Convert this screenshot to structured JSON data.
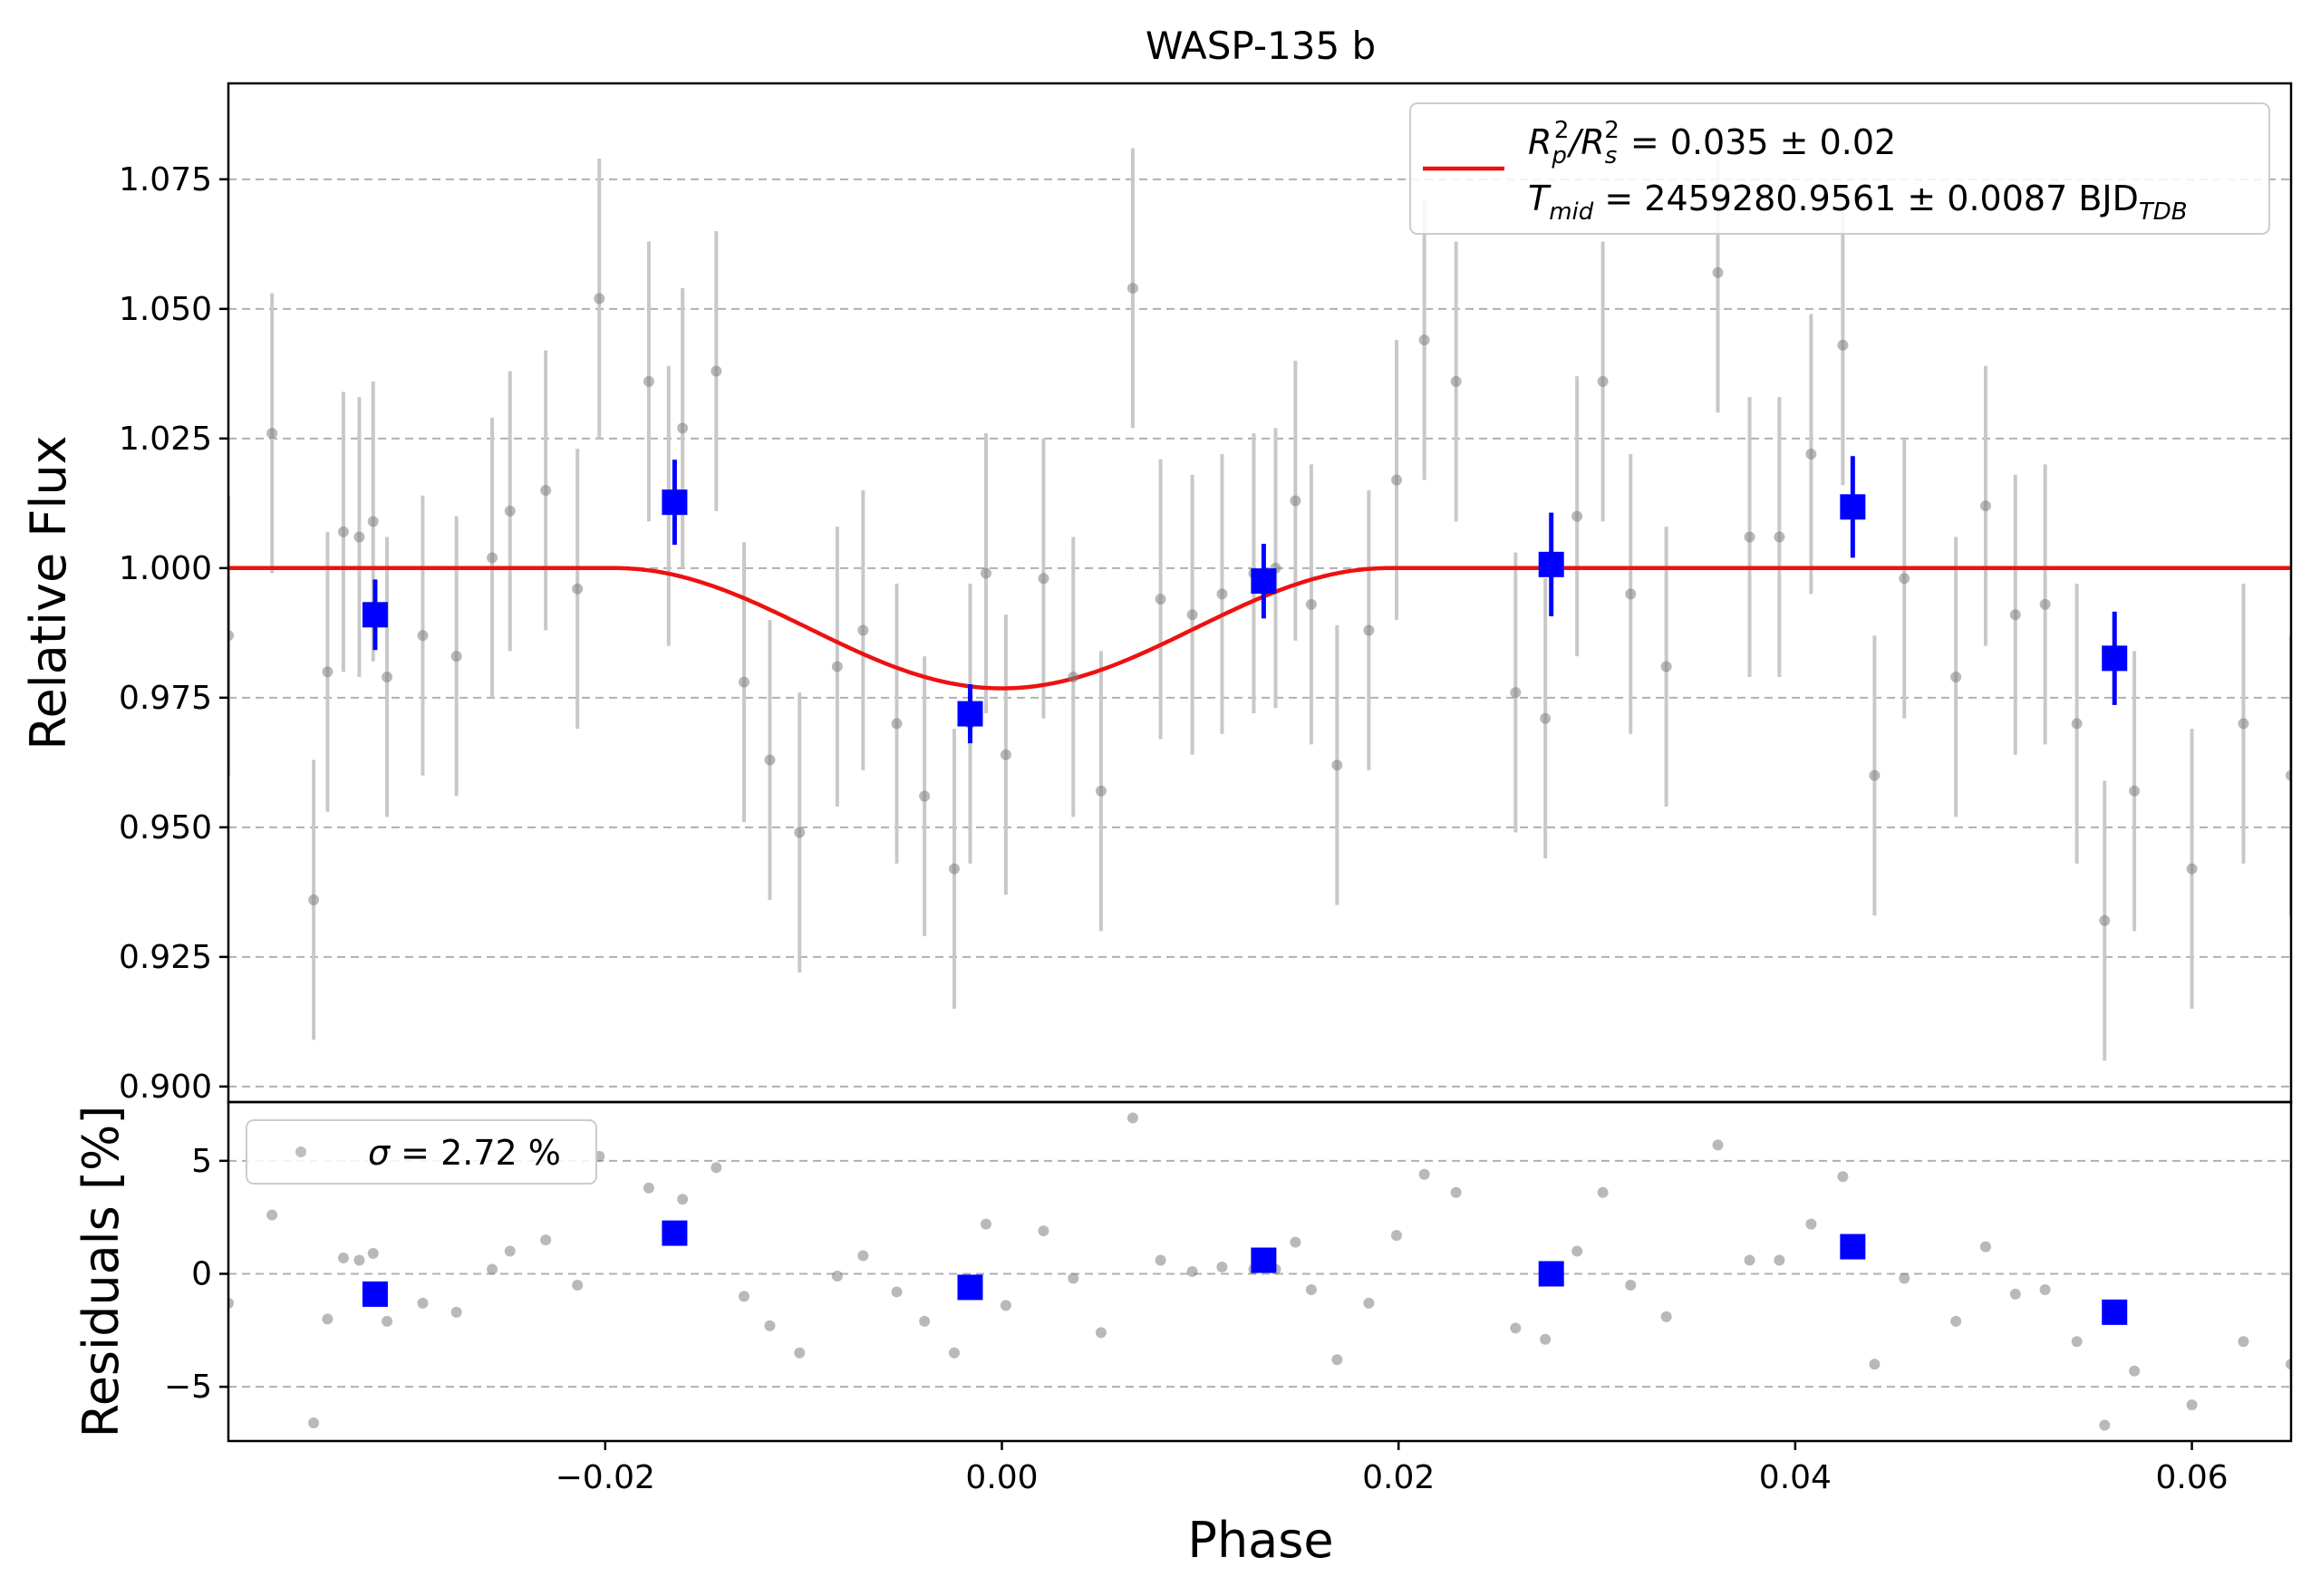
{
  "chart_data": {
    "type": "scatter",
    "title": "WASP-135 b",
    "xlabel": "Phase",
    "ylabel_top": "Relative Flux",
    "ylabel_bottom": "Residuals [%]",
    "xlim": [
      -0.039,
      0.065
    ],
    "ylim_top": [
      0.897,
      1.0935
    ],
    "ylim_bottom": [
      -7.4,
      7.6
    ],
    "xticks": [
      -0.02,
      0.0,
      0.02,
      0.04,
      0.06
    ],
    "xtick_labels": [
      "−0.02",
      "0.00",
      "0.02",
      "0.04",
      "0.06"
    ],
    "yticks_top": [
      0.9,
      0.925,
      0.95,
      0.975,
      1.0,
      1.025,
      1.05,
      1.075
    ],
    "ytick_labels_top": [
      "0.900",
      "0.925",
      "0.950",
      "0.975",
      "1.000",
      "1.025",
      "1.050",
      "1.075"
    ],
    "yticks_bottom": [
      -5,
      0,
      5
    ],
    "ytick_labels_bottom": [
      "−5",
      "0",
      "5"
    ],
    "grid": "horizontal dashed",
    "legend_top": {
      "placement": "top-right",
      "line1_main": "R",
      "line1_sub_p": "p",
      "line1_mid": "/R",
      "line1_sub_s": "s",
      "line1_sup": "2",
      "line1_value": " = 0.035 ± 0.02",
      "line2_main": "T",
      "line2_sub": "mid",
      "line2_value": " = 2459280.9561 ± 0.0087 BJD",
      "line2_unit_sub": "TDB"
    },
    "legend_bottom": {
      "placement": "top-left",
      "sigma_symbol": "σ",
      "text": " = 2.72 %"
    },
    "colors": {
      "raw": "#808080",
      "raw_err": "#c8c8c8",
      "binned": "#0000ff",
      "model": "#ee1111",
      "grid": "#b0b0b0"
    },
    "model": {
      "baseline": 1.0,
      "depth": 0.0232,
      "t_mid": 0.0,
      "half_duration": 0.0195
    },
    "raw": {
      "x": [
        -0.039,
        -0.0368,
        -0.0347,
        -0.034,
        -0.0332,
        -0.0324,
        -0.0317,
        -0.031,
        -0.0292,
        -0.0275,
        -0.0257,
        -0.0248,
        -0.023,
        -0.0214,
        -0.0203,
        -0.0178,
        -0.0168,
        -0.0161,
        -0.0144,
        -0.013,
        -0.0117,
        -0.0102,
        -0.0083,
        -0.007,
        -0.0053,
        -0.0039,
        -0.0024,
        -0.0016,
        -0.0008,
        0.0002,
        0.0021,
        0.0036,
        0.005,
        0.0066,
        0.008,
        0.0096,
        0.0111,
        0.0127,
        0.0138,
        0.0148,
        0.0156,
        0.0169,
        0.0185,
        0.0199,
        0.0213,
        0.0229,
        0.0259,
        0.0274,
        0.029,
        0.0303,
        0.0317,
        0.0335,
        0.0361,
        0.0377,
        0.0392,
        0.0408,
        0.0424,
        0.044,
        0.0455,
        0.0481,
        0.0496,
        0.0511,
        0.0526,
        0.0542,
        0.0556,
        0.0571,
        0.06,
        0.0626,
        0.065
      ],
      "y": [
        0.987,
        1.026,
        0.936,
        0.98,
        1.007,
        1.006,
        1.009,
        0.979,
        0.987,
        0.983,
        1.002,
        1.011,
        1.015,
        0.996,
        1.052,
        1.036,
        1.012,
        1.027,
        1.038,
        0.978,
        0.963,
        0.949,
        0.981,
        0.988,
        0.97,
        0.956,
        0.942,
        0.97,
        0.999,
        0.964,
        0.998,
        0.979,
        0.957,
        1.054,
        0.994,
        0.991,
        0.995,
        0.999,
        1.0,
        1.013,
        0.993,
        0.962,
        0.988,
        1.017,
        1.044,
        1.036,
        0.976,
        0.971,
        1.01,
        1.036,
        0.995,
        0.981,
        1.057,
        1.006,
        1.006,
        1.022,
        1.043,
        0.96,
        0.998,
        0.979,
        1.012,
        0.991,
        0.993,
        0.97,
        0.932,
        0.957,
        0.942,
        0.97,
        0.96
      ],
      "yerr": 0.027,
      "residuals": [
        -1.3,
        2.6,
        -6.6,
        -2.0,
        0.7,
        0.6,
        0.9,
        -2.1,
        -1.3,
        -1.7,
        0.2,
        1.0,
        1.5,
        -0.5,
        5.2,
        3.8,
        1.6,
        3.3,
        4.7,
        -1.0,
        -2.3,
        -3.5,
        -0.1,
        0.8,
        -0.8,
        -2.1,
        -3.5,
        -0.7,
        2.2,
        -1.4,
        1.9,
        -0.2,
        -2.6,
        6.9,
        0.6,
        0.1,
        0.3,
        0.2,
        0.2,
        1.4,
        -0.7,
        -3.8,
        -1.3,
        1.7,
        4.4,
        3.6,
        -2.4,
        -2.9,
        1.0,
        3.6,
        -0.5,
        -1.9,
        5.7,
        0.6,
        0.6,
        2.2,
        4.3,
        -4.0,
        -0.2,
        -2.1,
        1.2,
        -0.9,
        -0.7,
        -3.0,
        -6.7,
        -4.3,
        -5.8,
        -3.0,
        -4.0
      ]
    },
    "binned": {
      "x": [
        -0.0316,
        -0.0165,
        -0.0016,
        0.0132,
        0.0277,
        0.0429,
        0.0561
      ],
      "y": [
        0.991,
        1.0127,
        0.9719,
        0.9975,
        1.0007,
        1.0118,
        0.9826
      ],
      "yerr": [
        0.0068,
        0.0082,
        0.0057,
        0.0072,
        0.01,
        0.0098,
        0.009
      ],
      "residuals": [
        -0.9,
        1.8,
        -0.6,
        0.6,
        0.0,
        1.2,
        -1.7
      ]
    }
  }
}
